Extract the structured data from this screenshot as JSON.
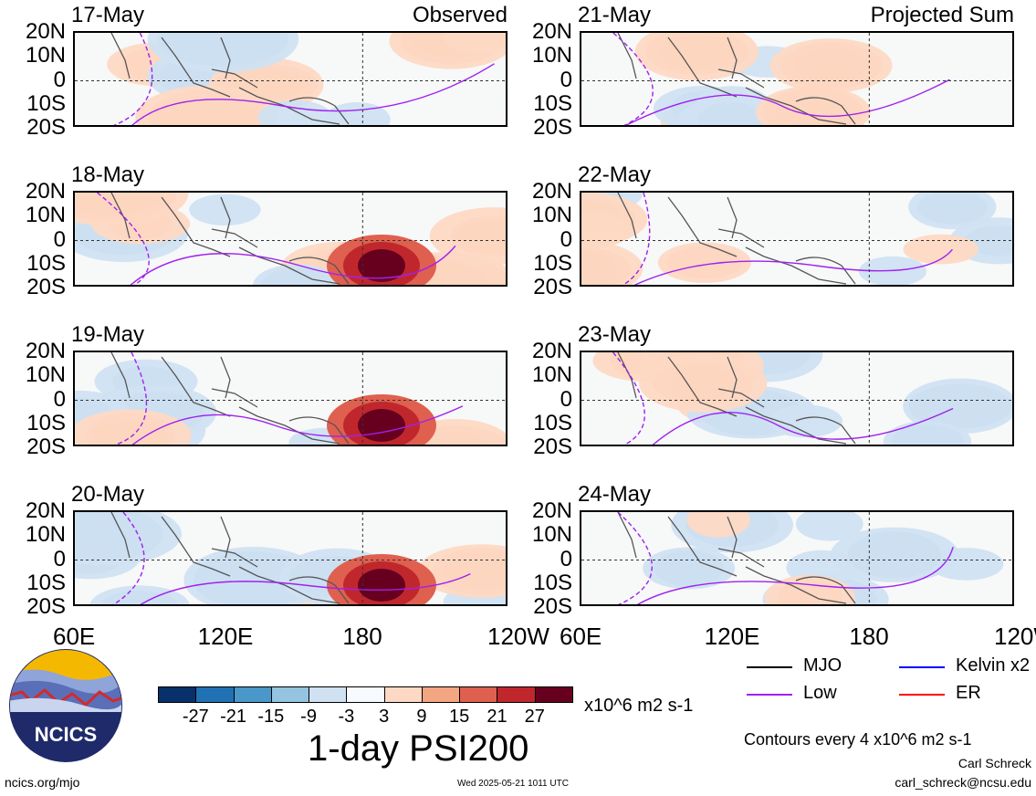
{
  "chart_data": {
    "type": "heatmap",
    "title": "1-day PSI200",
    "units": "x10^6 m2 s-1",
    "x_tick_labels": [
      "60E",
      "120E",
      "180",
      "120W"
    ],
    "y_tick_labels": [
      "20N",
      "10N",
      "0",
      "10S",
      "20S"
    ],
    "colorbar": {
      "tick_labels": [
        "-27",
        "-21",
        "-15",
        "-9",
        "-3",
        "3",
        "9",
        "15",
        "21",
        "27"
      ],
      "colors": [
        "#08306b",
        "#2171b5",
        "#4a98c9",
        "#94c4df",
        "#d0e1f2",
        "#f7fbff",
        "#fdd9c4",
        "#f4a582",
        "#e0604f",
        "#c0272d",
        "#67001f"
      ]
    },
    "panels": [
      {
        "date": "17-May",
        "label": "Observed",
        "column": "left",
        "row": 0
      },
      {
        "date": "18-May",
        "label": "",
        "column": "left",
        "row": 1
      },
      {
        "date": "19-May",
        "label": "",
        "column": "left",
        "row": 2
      },
      {
        "date": "20-May",
        "label": "",
        "column": "left",
        "row": 3
      },
      {
        "date": "21-May",
        "label": "Projected Sum",
        "column": "right",
        "row": 0
      },
      {
        "date": "22-May",
        "label": "",
        "column": "right",
        "row": 1
      },
      {
        "date": "23-May",
        "label": "",
        "column": "right",
        "row": 2
      },
      {
        "date": "24-May",
        "label": "",
        "column": "right",
        "row": 3
      }
    ],
    "legend": [
      {
        "label": "MJO",
        "color": "#000000"
      },
      {
        "label": "Kelvin x2",
        "color": "#0000ff"
      },
      {
        "label": "Low",
        "color": "#a020f0"
      },
      {
        "label": "ER",
        "color": "#ff0000"
      }
    ],
    "contour_note": "Contours every 4 x10^6 m2 s-1"
  },
  "logo": {
    "text": "NCICS"
  },
  "footer": {
    "url": "ncics.org/mjo",
    "timestamp": "Wed 2025-05-21 1011 UTC",
    "author": "Carl Schreck",
    "email": "carl_schreck@ncsu.edu"
  }
}
